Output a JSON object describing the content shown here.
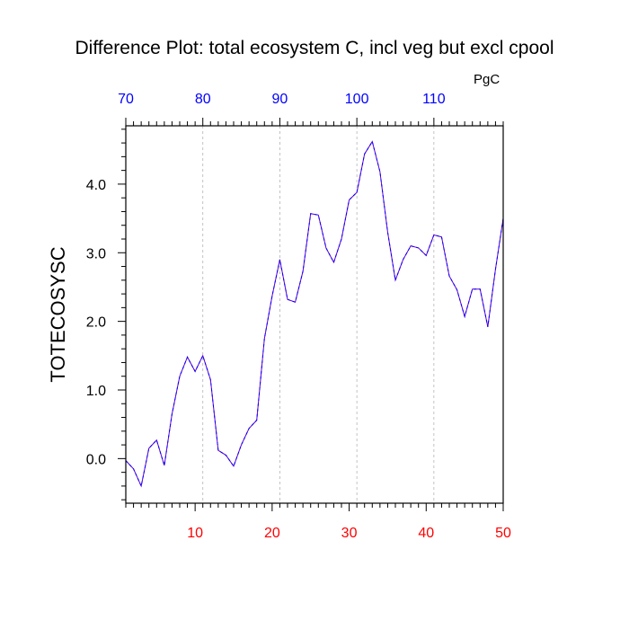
{
  "chart_data": {
    "type": "line",
    "title": "Difference Plot: total ecosystem C, incl veg but excl cpool",
    "units": "PgC",
    "ylabel": "TOTECOSYSC",
    "xlabel": "",
    "xlim": [
      1,
      50
    ],
    "ylim": [
      -0.65,
      4.85
    ],
    "x_ticks": [
      10,
      20,
      30,
      40,
      50
    ],
    "x_tick_labels": [
      "10",
      "20",
      "30",
      "40",
      "50"
    ],
    "top_axis": {
      "xlim": [
        70,
        119
      ],
      "ticks": [
        70,
        80,
        90,
        100,
        110
      ],
      "tick_labels": [
        "70",
        "80",
        "90",
        "100",
        "110"
      ],
      "color": "#0000ff"
    },
    "y_ticks": [
      0,
      1,
      2,
      3,
      4
    ],
    "y_tick_labels": [
      "0.0",
      "1.0",
      "2.0",
      "3.0",
      "4.0"
    ],
    "grid": "vertical dashed lines at major top-axis ticks",
    "legend": "none",
    "colors": {
      "bottom_axis_labels": "#ff0000",
      "top_axis_labels": "#0000ff",
      "line": "#6600cc",
      "line_dash": "#0000ff",
      "grid": "#b4b4b4"
    },
    "series": [
      {
        "x": [
          1,
          2,
          3,
          4,
          5,
          6,
          7,
          8,
          9,
          10,
          11,
          12,
          13,
          14,
          15,
          16,
          17,
          18,
          19,
          20,
          21,
          22,
          23,
          24,
          25,
          26,
          27,
          28,
          29,
          30,
          31,
          32,
          33,
          34,
          35,
          36,
          37,
          38,
          39,
          40,
          41,
          42,
          43,
          44,
          45,
          46,
          47,
          48,
          49,
          50
        ],
        "values": [
          -0.03,
          -0.15,
          -0.4,
          0.15,
          0.27,
          -0.1,
          0.65,
          1.2,
          1.48,
          1.27,
          1.5,
          1.15,
          0.12,
          0.05,
          -0.11,
          0.2,
          0.44,
          0.56,
          1.75,
          2.37,
          2.9,
          2.32,
          2.28,
          2.73,
          3.57,
          3.55,
          3.07,
          2.86,
          3.2,
          3.77,
          3.88,
          4.44,
          4.62,
          4.18,
          3.3,
          2.6,
          2.9,
          3.1,
          3.07,
          2.96,
          3.26,
          3.23,
          2.66,
          2.46,
          2.07,
          2.47,
          2.47,
          1.92,
          2.76,
          3.5
        ]
      }
    ]
  }
}
